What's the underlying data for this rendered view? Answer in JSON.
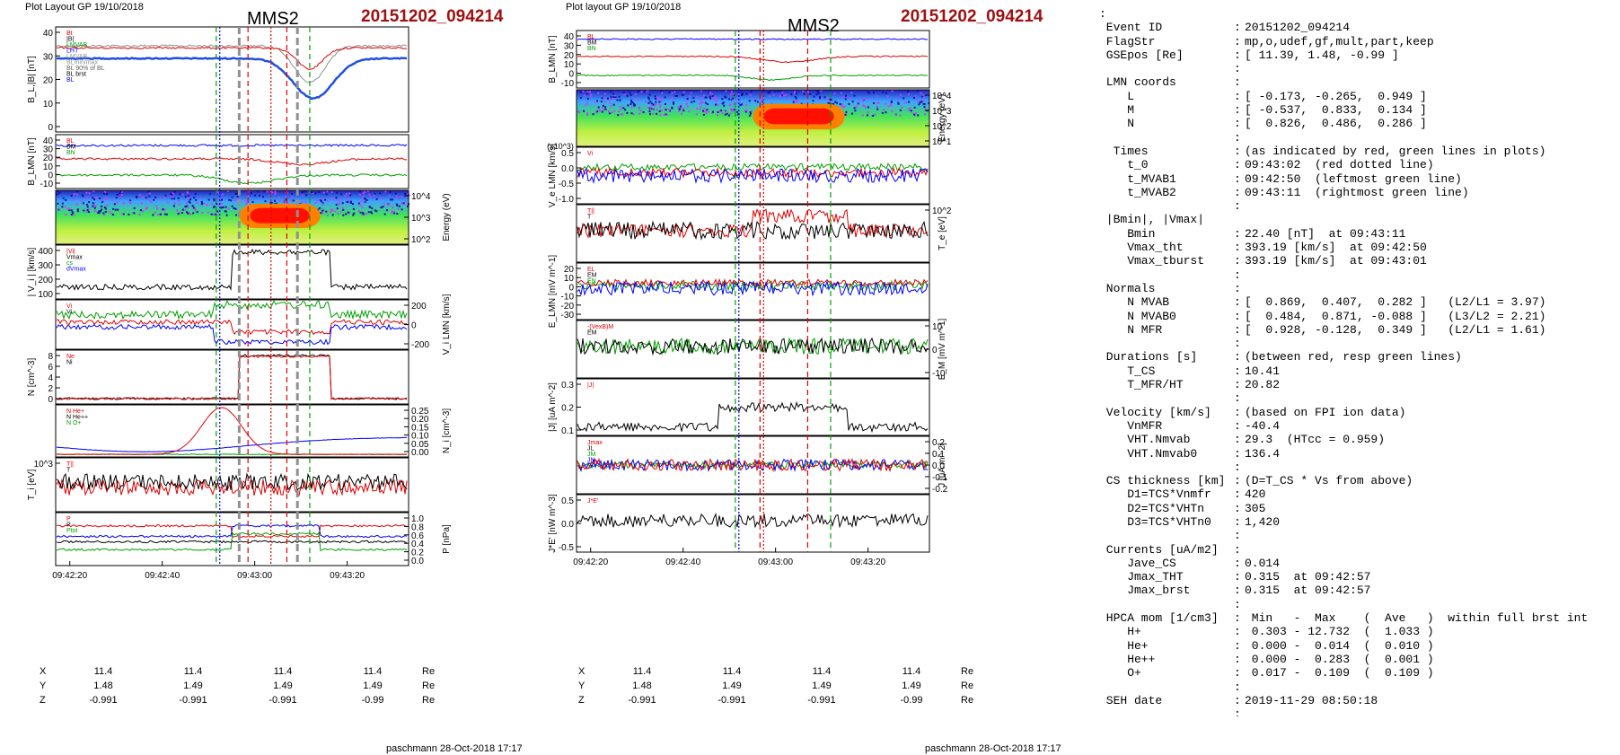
{
  "left_plot": {
    "header": "Plot Layout GP 19/10/2018",
    "title": "MMS2",
    "event": "20151202_094214",
    "panels": [
      {
        "ylabel": "B_L,|B| [nT]",
        "ticks_left": [
          "40",
          "30",
          "20",
          "10",
          "0"
        ],
        "legend": [
          "Bt",
          "|B|",
          "LMVAB",
          "LHT",
          "LMVAB",
          "BLmin/max",
          "BL 90% of BL",
          "BL brst",
          "BL"
        ]
      },
      {
        "ylabel": "B_LMN [nT]",
        "ticks_left": [
          "40",
          "30",
          "20",
          "10",
          "0",
          "-10"
        ],
        "legend": [
          "BL",
          "BM",
          "BN"
        ]
      },
      {
        "ylabel_right": "Energy (eV)",
        "ticks_right": [
          "10^4",
          "10^3",
          "10^2"
        ]
      },
      {
        "ylabel": "| V_i | [km/s]",
        "ticks_left": [
          "400",
          "300",
          "200",
          "100"
        ],
        "legend": [
          "|Vi|",
          "Vmax",
          "cs",
          "dVmax"
        ]
      },
      {
        "ylabel_right": "V_i LMN [km/s]",
        "ticks_right": [
          "200",
          "0",
          "-200"
        ],
        "legend": [
          "Vi",
          "Vi"
        ]
      },
      {
        "ylabel": "N [cm^-3]",
        "ticks_left": [
          "8",
          "6",
          "4",
          "2",
          "0"
        ],
        "legend": [
          "Ne",
          "Ni"
        ]
      },
      {
        "ylabel_right": "N_i [cm^-3]",
        "ticks_right": [
          "0.25",
          "0.20",
          "0.15",
          "0.10",
          "0.05",
          "0.00"
        ],
        "legend": [
          "N He+",
          "N He++",
          "N O+"
        ]
      },
      {
        "ylabel": "T_i [eV]",
        "ticks_left": [
          "10^3"
        ],
        "legend": [
          "T||",
          "T"
        ]
      },
      {
        "ylabel_right": "P [nPa]",
        "ticks_right": [
          "1.0",
          "0.8",
          "0.6",
          "0.4",
          "0.2",
          "0.0"
        ],
        "legend": [
          "P",
          "P",
          "Ptot"
        ]
      }
    ],
    "time_ticks": [
      "09:42:20",
      "09:42:40",
      "09:43:00",
      "09:43:20"
    ],
    "coords": [
      {
        "name": "X",
        "values": [
          "11.4",
          "11.4",
          "11.4",
          "11.4"
        ],
        "unit": "Re"
      },
      {
        "name": "Y",
        "values": [
          "1.48",
          "1.49",
          "1.49",
          "1.49"
        ],
        "unit": "Re"
      },
      {
        "name": "Z",
        "values": [
          "-0.991",
          "-0.991",
          "-0.991",
          "-0.99"
        ],
        "unit": "Re"
      }
    ],
    "footer": "paschmann 28-Oct-2018 17:17"
  },
  "middle_plot": {
    "header": "Plot layout GP 19/10/2018",
    "title": "MMS2",
    "event": "20151202_094214",
    "panels": [
      {
        "ylabel": "B_LMN [nT]",
        "ticks_left": [
          "40",
          "30",
          "20",
          "10",
          "0",
          "-10"
        ],
        "legend": [
          "BL",
          "BM",
          "BN"
        ]
      },
      {
        "ylabel_right": "Energy (eV)",
        "ticks_right": [
          "10^4",
          "10^3",
          "10^2",
          "10^1"
        ]
      },
      {
        "ylabel": "V_e LMN [km/s]",
        "exponent": "(x10^3)",
        "ticks_left": [
          "0.5",
          "0.0",
          "-0.5",
          "-1.0"
        ],
        "legend": [
          "Vi"
        ]
      },
      {
        "ylabel_right": "T_e [eV]",
        "ticks_right": [
          "10^2"
        ],
        "legend": [
          "T||",
          "T"
        ]
      },
      {
        "ylabel": "E_LMN [mV m^-1]",
        "ticks_left": [
          "20",
          "10",
          "0",
          "-10",
          "-20",
          "-30"
        ],
        "legend": [
          "EL",
          "EM",
          "EN"
        ]
      },
      {
        "ylabel_right": "E_M [mV m^-1]",
        "ticks_right": [
          "10",
          "0",
          "-10"
        ],
        "legend": [
          "-(VexB)M",
          "EM"
        ]
      },
      {
        "ylabel": "|J| [uA m^-2]",
        "ticks_left": [
          "0.3",
          "0.2",
          "0.1"
        ],
        "legend": [
          "|J|"
        ]
      },
      {
        "ylabel_right": "J [uA m^-2]",
        "ticks_right": [
          "0.2",
          "0.1",
          "0.0",
          "-0.1",
          "-0.2"
        ],
        "legend": [
          "Jmax",
          "JL",
          "JM",
          "JN"
        ]
      },
      {
        "ylabel": "J*E' [nW m^-3]",
        "ticks_left": [
          "0.5",
          "0.0",
          "-0.5"
        ],
        "legend": [
          "J*E'"
        ]
      }
    ],
    "time_ticks": [
      "09:42:20",
      "09:42:40",
      "09:43:00",
      "09:43:20"
    ],
    "coords": [
      {
        "name": "X",
        "values": [
          "11.4",
          "11.4",
          "11.4",
          "11.4"
        ],
        "unit": "Re"
      },
      {
        "name": "Y",
        "values": [
          "1.48",
          "1.49",
          "1.49",
          "1.49"
        ],
        "unit": "Re"
      },
      {
        "name": "Z",
        "values": [
          "-0.991",
          "-0.991",
          "-0.991",
          "-0.99"
        ],
        "unit": "Re"
      }
    ],
    "footer": "paschmann 28-Oct-2018 17:17"
  },
  "colors": {
    "red_line": "#e00000",
    "green_line": "#00a000",
    "blue_line": "#0000ff",
    "event_red": "#a01010"
  },
  "summary": {
    "lines": [
      {
        "k": "",
        "v": "",
        "lead": ":"
      },
      {
        "k": "Event ID",
        "v": "20151202_094214"
      },
      {
        "k": "FlagStr",
        "v": "mp,o,udef,gf,mult,part,keep"
      },
      {
        "k": "GSEpos [Re]",
        "v": "[ 11.39, 1.48, -0.99 ]"
      },
      {
        "k": "",
        "v": ""
      },
      {
        "k": "LMN coords",
        "v": ""
      },
      {
        "k": "   L",
        "v": "[ -0.173, -0.265,  0.949 ]"
      },
      {
        "k": "   M",
        "v": "[ -0.537,  0.833,  0.134 ]"
      },
      {
        "k": "   N",
        "v": "[  0.826,  0.486,  0.286 ]"
      },
      {
        "k": "",
        "v": ""
      },
      {
        "k": " Times",
        "v": "(as indicated by red, green lines in plots)"
      },
      {
        "k": "   t_0",
        "v": "09:43:02  (red dotted line)"
      },
      {
        "k": "   t_MVAB1",
        "v": "09:42:50  (leftmost green line)"
      },
      {
        "k": "   t_MVAB2",
        "v": "09:43:11  (rightmost green line)"
      },
      {
        "k": "",
        "v": ""
      },
      {
        "k": "|Bmin|, |Vmax|",
        "v": "",
        "nocolon": true
      },
      {
        "k": "   Bmin",
        "v": "22.40 [nT]  at 09:43:11"
      },
      {
        "k": "   Vmax_tht",
        "v": "393.19 [km/s]  at 09:42:50"
      },
      {
        "k": "   Vmax_tburst",
        "v": "393.19 [km/s]  at 09:43:01"
      },
      {
        "k": "",
        "v": ""
      },
      {
        "k": "Normals",
        "v": ""
      },
      {
        "k": "   N MVAB",
        "v": "[  0.869,  0.407,  0.282 ]   (L2/L1 = 3.97)"
      },
      {
        "k": "   N MVAB0",
        "v": "[  0.484,  0.871, -0.088 ]   (L3/L2 = 2.21)"
      },
      {
        "k": "   N MFR",
        "v": "[  0.928, -0.128,  0.349 ]   (L2/L1 = 1.61)"
      },
      {
        "k": "",
        "v": ""
      },
      {
        "k": "Durations [s]",
        "v": "(between red, resp green lines)"
      },
      {
        "k": "   T_CS",
        "v": "10.41"
      },
      {
        "k": "   T_MFR/HT",
        "v": "20.82"
      },
      {
        "k": "",
        "v": ""
      },
      {
        "k": "Velocity [km/s]",
        "v": "(based on FPI ion data)"
      },
      {
        "k": "   VnMFR",
        "v": "-40.4"
      },
      {
        "k": "   VHT.Nmvab",
        "v": "29.3  (HTcc = 0.959)"
      },
      {
        "k": "   VHT.Nmvab0",
        "v": "136.4"
      },
      {
        "k": "",
        "v": ""
      },
      {
        "k": "CS thickness [km]",
        "v": "(D=T_CS * Vs from above)"
      },
      {
        "k": "   D1=TCS*Vnmfr",
        "v": "420"
      },
      {
        "k": "   D2=TCS*VHTn",
        "v": "305"
      },
      {
        "k": "   D3=TCS*VHTn0",
        "v": "1,420"
      },
      {
        "k": "",
        "v": ""
      },
      {
        "k": "Currents [uA/m2]",
        "v": ""
      },
      {
        "k": "   Jave_CS",
        "v": "0.014"
      },
      {
        "k": "   Jmax_THT",
        "v": "0.315  at 09:42:57"
      },
      {
        "k": "   Jmax_brst",
        "v": "0.315  at 09:42:57"
      },
      {
        "k": "",
        "v": ""
      },
      {
        "k": "HPCA mom [1/cm3]",
        "v": " Min   -  Max    (  Ave   )  within full brst int"
      },
      {
        "k": "   H+",
        "v": " 0.303 - 12.732  (  1.033 )"
      },
      {
        "k": "   He+",
        "v": " 0.000 -  0.014  (  0.010 )"
      },
      {
        "k": "   He++",
        "v": " 0.000 -  0.283  (  0.001 )"
      },
      {
        "k": "   O+",
        "v": " 0.017 -  0.109  (  0.109 )"
      },
      {
        "k": "",
        "v": ""
      },
      {
        "k": "SEH date",
        "v": "2019-11-29 08:50:18"
      },
      {
        "k": "",
        "v": ""
      }
    ]
  }
}
